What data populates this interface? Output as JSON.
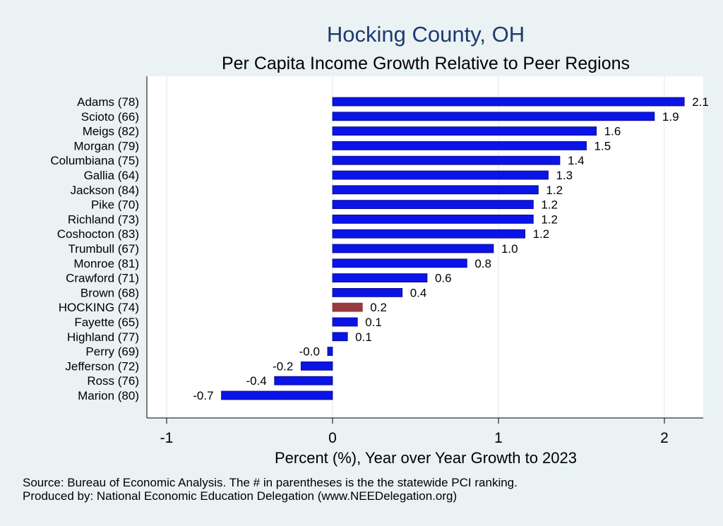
{
  "chart_data": {
    "type": "bar",
    "orientation": "horizontal",
    "title": "Hocking County, OH",
    "subtitle": "Per Capita Income Growth Relative to Peer Regions",
    "xlabel": "Percent (%), Year over Year Growth to 2023",
    "ylabel": "",
    "xlim": [
      -1,
      2.2
    ],
    "xticks": [
      -1,
      0,
      1,
      2
    ],
    "xtick_labels": [
      "-1",
      "0",
      "1",
      "2"
    ],
    "grid": true,
    "categories": [
      "Adams (78)",
      "Scioto (66)",
      "Meigs (82)",
      "Morgan (79)",
      "Columbiana (75)",
      "Gallia (64)",
      "Jackson (84)",
      "Pike (70)",
      "Richland (73)",
      "Coshocton (83)",
      "Trumbull (67)",
      "Monroe (81)",
      "Crawford (71)",
      "Brown (68)",
      "HOCKING (74)",
      "Fayette (65)",
      "Highland (77)",
      "Perry (69)",
      "Jefferson (72)",
      "Ross (76)",
      "Marion (80)"
    ],
    "values": [
      2.12,
      1.94,
      1.59,
      1.53,
      1.37,
      1.3,
      1.24,
      1.21,
      1.21,
      1.16,
      0.97,
      0.81,
      0.57,
      0.42,
      0.18,
      0.15,
      0.09,
      -0.03,
      -0.19,
      -0.35,
      -0.67
    ],
    "value_labels": [
      "2.1",
      "1.9",
      "1.6",
      "1.5",
      "1.4",
      "1.3",
      "1.2",
      "1.2",
      "1.2",
      "1.2",
      "1.0",
      "0.8",
      "0.6",
      "0.4",
      "0.2",
      "0.1",
      "0.1",
      "-0.0",
      "-0.2",
      "-0.4",
      "-0.7"
    ],
    "highlight_index": 14,
    "colors": {
      "default": "#0a14e6",
      "highlight": "#983a3e",
      "bar_edge": "#0a0a80",
      "grid": "#e8f0f0",
      "title": "#1e3a6e"
    }
  },
  "notes": {
    "source": "Source: Bureau of Economic Analysis. The # in parentheses is the the statewide PCI ranking.",
    "produced_by": "Produced by: National Economic Education Delegation (www.NEEDelegation.org)"
  }
}
